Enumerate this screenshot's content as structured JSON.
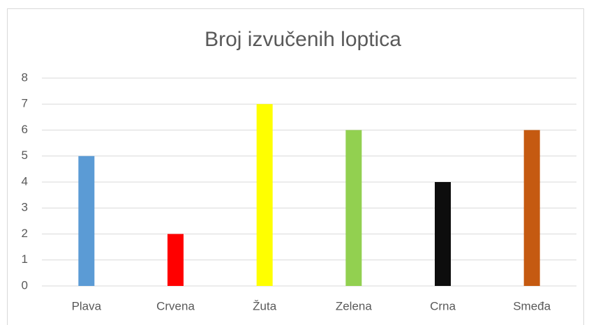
{
  "chart_data": {
    "type": "bar",
    "title": "Broj izvučenih loptica",
    "categories": [
      "Plava",
      "Crvena",
      "Žuta",
      "Zelena",
      "Crna",
      "Smeđa"
    ],
    "values": [
      5,
      2,
      7,
      6,
      4,
      6
    ],
    "colors": [
      "#5b9bd5",
      "#ff0000",
      "#ffff00",
      "#92d050",
      "#0d0d0d",
      "#c55a11"
    ],
    "ylim": [
      0,
      8
    ],
    "yticks": [
      0,
      1,
      2,
      3,
      4,
      5,
      6,
      7,
      8
    ],
    "grid": true
  }
}
